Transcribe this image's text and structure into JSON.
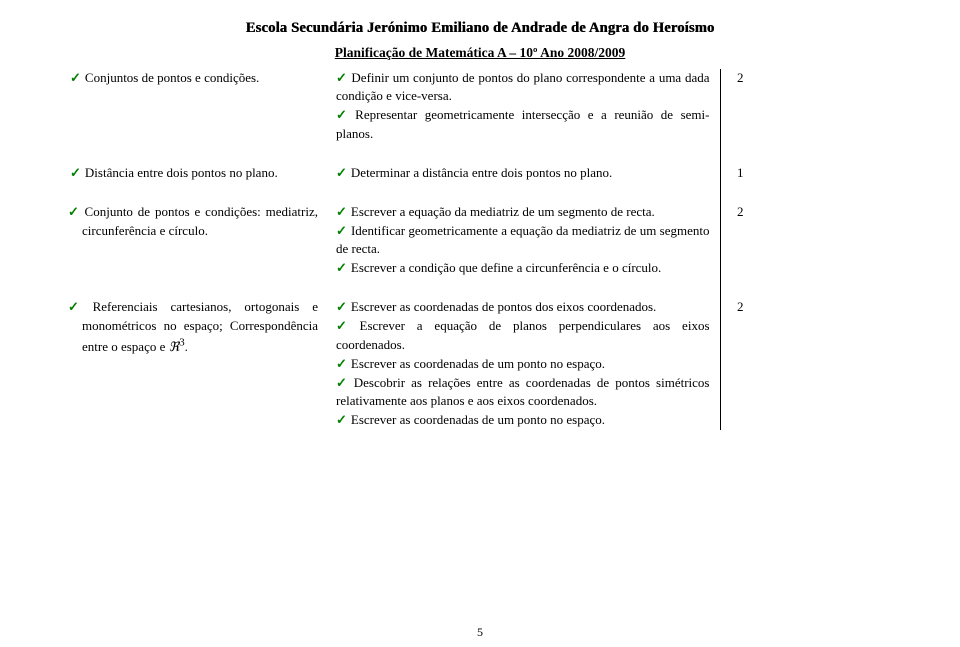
{
  "header": {
    "school": "Escola Secundária Jerónimo Emiliano de Andrade de Angra do Heroísmo",
    "plan": "Planificação de Matemática A – 10º Ano 2008/2009"
  },
  "rows": [
    {
      "left": [
        "Conjuntos de pontos e condições."
      ],
      "mid": [
        "Definir um conjunto de pontos do plano correspondente a uma dada condição e vice-versa.",
        "Representar geometricamente intersecção e a reunião de semi-planos."
      ],
      "hours": "2"
    },
    {
      "left": [
        "Distância entre dois pontos no plano."
      ],
      "mid": [
        "Determinar a distância entre dois pontos no plano."
      ],
      "hours": "1"
    },
    {
      "left": [
        "Conjunto de pontos e condições: mediatriz, circunferência e círculo."
      ],
      "mid": [
        "Escrever a equação da mediatriz de um segmento de recta.",
        "Identificar geometricamente a equação da mediatriz de um segmento de recta.",
        "Escrever a condição que define a circunferência e o círculo."
      ],
      "hours": "2"
    },
    {
      "left": [
        "Referenciais cartesianos, ortogonais e monométricos no espaço; Correspondência entre o espaço e ℜ³."
      ],
      "mid": [
        "Escrever as coordenadas de pontos dos eixos coordenados.",
        "Escrever a equação de planos perpendiculares aos eixos coordenados.",
        "Escrever as coordenadas de um ponto no espaço.",
        "Descobrir as relações entre as coordenadas de pontos simétricos relativamente aos planos e aos eixos coordenados.",
        "Escrever as coordenadas de um ponto no espaço."
      ],
      "hours": "2"
    }
  ],
  "page_number": "5"
}
